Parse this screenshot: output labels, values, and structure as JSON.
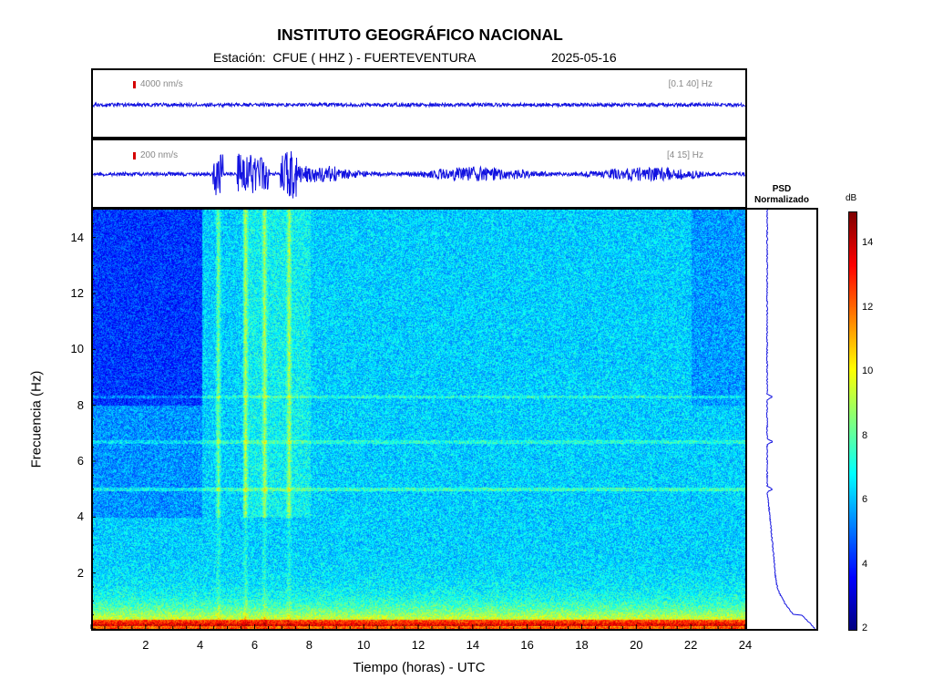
{
  "header": {
    "title": "INSTITUTO GEOGRÁFICO NACIONAL",
    "station_line": "Estación:  CFUE ( HHZ ) - FUERTEVENTURA",
    "date": "2025-05-16"
  },
  "traces": [
    {
      "scale_label": "4000 nm/s",
      "band_label": "[0.1 40]  Hz",
      "color": "#1212e0"
    },
    {
      "scale_label": "200 nm/s",
      "band_label": "[4 15]  Hz",
      "color": "#1212e0"
    }
  ],
  "chart_data": {
    "type": "heatmap",
    "title": "INSTITUTO GEOGRÁFICO NACIONAL",
    "xlabel": "Tiempo (horas) - UTC",
    "ylabel": "Frecuencia  (Hz)",
    "xlim": [
      0,
      24
    ],
    "ylim": [
      0,
      15
    ],
    "xticks": [
      "2",
      "4",
      "6",
      "8",
      "10",
      "12",
      "14",
      "16",
      "18",
      "20",
      "22",
      "24"
    ],
    "yticks": [
      "2",
      "4",
      "6",
      "8",
      "10",
      "12",
      "14"
    ],
    "colorbar": {
      "label": "dB",
      "range": [
        2,
        15
      ],
      "ticks": [
        "2",
        "4",
        "6",
        "8",
        "10",
        "12",
        "14"
      ]
    },
    "psd_panel": {
      "label_line1": "PSD",
      "label_line2": "Normalizado",
      "peaks_hz": [
        8.3,
        6.7,
        5.0
      ]
    },
    "event_bursts_hours": [
      4.6,
      5.6,
      6.3,
      7.2
    ]
  }
}
